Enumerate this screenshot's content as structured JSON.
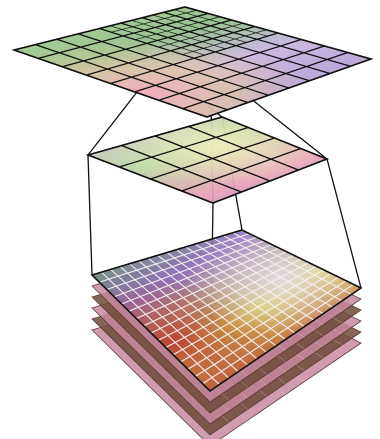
{
  "diagram": {
    "levels": [
      {
        "name": "top",
        "subdivision": 8
      },
      {
        "name": "middle",
        "subdivision": 4
      },
      {
        "name": "base",
        "subdivision": 16
      }
    ],
    "stack_layers": 5,
    "colors": {
      "grid_line": "#111111",
      "base_grid_line": "#f4f0f0",
      "top_violet": "#9b86cc",
      "top_green": "#8fbf86",
      "top_pink": "#e49fb0",
      "base_red": "#b83a32",
      "base_green": "#4e9d3e",
      "base_violet": "#8d6fbd",
      "base_yellow": "#d8d34a",
      "stack_brown": "#6e4a3a",
      "stack_pink": "#c88aa0"
    }
  }
}
